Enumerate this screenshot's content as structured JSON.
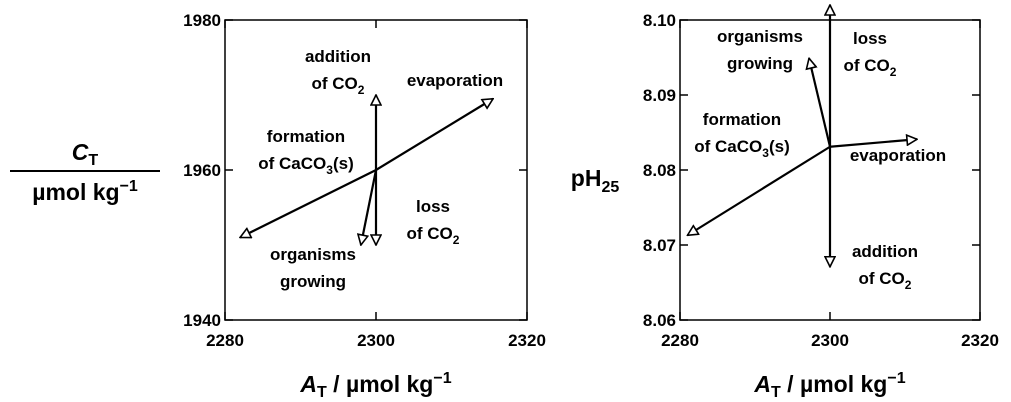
{
  "chart_data": [
    {
      "type": "vector",
      "xlabel": [
        "A",
        "T",
        " / µmol kg",
        "−1"
      ],
      "ylabel": [
        [
          "C",
          "T"
        ],
        [
          "µmol kg",
          "−1"
        ]
      ],
      "xlim": [
        2280,
        2320
      ],
      "ylim": [
        1940,
        1980
      ],
      "xticks": [
        2280,
        2300,
        2320
      ],
      "yticks": [
        1940,
        1960,
        1980
      ],
      "origin": {
        "x": 2300,
        "y": 1960
      },
      "vectors": [
        {
          "label": [
            [
              "addition"
            ],
            [
              "of CO",
              "2"
            ]
          ],
          "x": 2300,
          "y": 1970
        },
        {
          "label": [
            [
              "evaporation"
            ]
          ],
          "x": 2315.5,
          "y": 1969.5
        },
        {
          "label": [
            [
              "formation"
            ],
            [
              "of CaCO",
              "3",
              "(s)"
            ]
          ],
          "x": 2282,
          "y": 1951
        },
        {
          "label": [
            [
              "loss"
            ],
            [
              "of CO",
              "2"
            ]
          ],
          "x": 2300,
          "y": 1950
        },
        {
          "label": [
            [
              "organisms"
            ],
            [
              "growing"
            ]
          ],
          "x": 2298,
          "y": 1950
        }
      ]
    },
    {
      "type": "vector",
      "xlabel": [
        "A",
        "T",
        " / µmol kg",
        "−1"
      ],
      "ylabel": [
        "pH",
        "25"
      ],
      "xlim": [
        2280,
        2320
      ],
      "ylim": [
        8.06,
        8.1
      ],
      "xticks": [
        2280,
        2300,
        2320
      ],
      "yticks": [
        {
          "value": 8.06,
          "label": "8.06"
        },
        {
          "value": 8.07,
          "label": "8.07"
        },
        {
          "value": 8.08,
          "label": "8.08"
        },
        {
          "value": 8.09,
          "label": "8.09"
        },
        {
          "value": 8.1,
          "label": "8.10"
        }
      ],
      "origin": {
        "x": 2300,
        "y": 8.0831
      },
      "vectors": [
        {
          "label": [
            [
              "organisms"
            ],
            [
              "growing"
            ]
          ],
          "x": 2297.2,
          "y": 8.0949
        },
        {
          "label": [
            [
              "loss"
            ],
            [
              "of CO",
              "2"
            ]
          ],
          "x": 2300,
          "y": 8.102
        },
        {
          "label": [
            [
              "formation"
            ],
            [
              "of CaCO",
              "3",
              "(s)"
            ]
          ],
          "x": 2281,
          "y": 8.0713
        },
        {
          "label": [
            [
              "evaporation"
            ]
          ],
          "x": 2311.6,
          "y": 8.0841
        },
        {
          "label": [
            [
              "addition"
            ],
            [
              "of CO",
              "2"
            ]
          ],
          "x": 2300,
          "y": 8.0671
        }
      ]
    }
  ]
}
